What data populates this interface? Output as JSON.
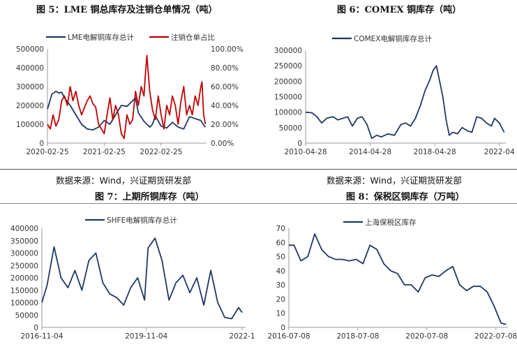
{
  "charts": {
    "c5": {
      "title": "图 5：LME 铜总库存及注销仓单情况（吨）",
      "source": "数据来源：Wind，兴证期货研发部",
      "chart_data": {
        "type": "line",
        "xlabel": "",
        "ylabel": "",
        "x_ticks": [
          "2020-02-25",
          "2021-02-25",
          "2022-02-25"
        ],
        "y_left_ticks": [
          "0",
          "100000",
          "200000",
          "300000",
          "400000",
          "500000"
        ],
        "y_right_ticks": [
          "0.00%",
          "20.00%",
          "40.00%",
          "60.00%",
          "80.00%",
          "100.00%"
        ],
        "ylim_left": [
          0,
          500000
        ],
        "ylim_right": [
          0,
          100
        ],
        "legend": "top",
        "series": [
          {
            "name": "LME电解铜库存总计",
            "axis": "left",
            "color": "#1f3864",
            "x": [
              2020.0,
              2020.08,
              2020.15,
              2020.2,
              2020.25,
              2020.3,
              2020.4,
              2020.5,
              2020.6,
              2020.7,
              2020.8,
              2020.9,
              2021.0,
              2021.1,
              2021.2,
              2021.3,
              2021.4,
              2021.5,
              2021.55,
              2021.6,
              2021.7,
              2021.8,
              2021.85,
              2021.9,
              2022.0,
              2022.1,
              2022.2,
              2022.3,
              2022.4,
              2022.5,
              2022.6,
              2022.7,
              2022.75,
              2022.78
            ],
            "values": [
              180000,
              260000,
              275000,
              265000,
              270000,
              240000,
              200000,
              150000,
              100000,
              75000,
              70000,
              85000,
              120000,
              100000,
              150000,
              200000,
              195000,
              225000,
              240000,
              160000,
              115000,
              85000,
              100000,
              145000,
              90000,
              80000,
              110000,
              85000,
              75000,
              140000,
              130000,
              120000,
              95000,
              85000
            ]
          },
          {
            "name": "注销仓单占比",
            "axis": "right",
            "color": "#c00000",
            "x": [
              2020.0,
              2020.05,
              2020.1,
              2020.15,
              2020.2,
              2020.25,
              2020.3,
              2020.35,
              2020.4,
              2020.45,
              2020.5,
              2020.55,
              2020.6,
              2020.7,
              2020.75,
              2020.8,
              2020.85,
              2020.9,
              2021.0,
              2021.05,
              2021.1,
              2021.15,
              2021.2,
              2021.25,
              2021.3,
              2021.35,
              2021.4,
              2021.45,
              2021.5,
              2021.55,
              2021.6,
              2021.65,
              2021.7,
              2021.72,
              2021.75,
              2021.8,
              2021.85,
              2021.9,
              2021.95,
              2022.0,
              2022.05,
              2022.1,
              2022.15,
              2022.2,
              2022.25,
              2022.3,
              2022.35,
              2022.4,
              2022.45,
              2022.5,
              2022.55,
              2022.6,
              2022.65,
              2022.7,
              2022.72,
              2022.75,
              2022.78
            ],
            "values": [
              20,
              15,
              30,
              18,
              25,
              45,
              50,
              40,
              60,
              45,
              55,
              40,
              30,
              45,
              50,
              42,
              38,
              20,
              10,
              30,
              48,
              25,
              40,
              30,
              10,
              5,
              30,
              20,
              25,
              55,
              40,
              60,
              50,
              70,
              93,
              55,
              35,
              25,
              50,
              30,
              15,
              40,
              30,
              50,
              40,
              20,
              45,
              60,
              30,
              40,
              30,
              50,
              40,
              60,
              65,
              30,
              20
            ]
          }
        ]
      }
    },
    "c6": {
      "title": "图 6：COMEX 铜库存（吨）",
      "chart_data": {
        "type": "line",
        "xlabel": "",
        "ylabel": "",
        "x_ticks": [
          "2010-04-28",
          "2014-04-28",
          "2018-04-28",
          "2022-04"
        ],
        "y_ticks": [
          "0",
          "50000",
          "100000",
          "150000",
          "200000",
          "250000",
          "300000"
        ],
        "ylim": [
          0,
          300000
        ],
        "legend": "top",
        "series": [
          {
            "name": "COMEX电解铜库存总计",
            "color": "#1f3864",
            "x": [
              2010.3,
              2010.7,
              2011.0,
              2011.3,
              2011.6,
              2012.0,
              2012.3,
              2012.6,
              2012.9,
              2013.2,
              2013.5,
              2013.8,
              2014.1,
              2014.4,
              2014.7,
              2015.0,
              2015.4,
              2015.8,
              2016.2,
              2016.5,
              2016.8,
              2017.1,
              2017.4,
              2017.7,
              2018.0,
              2018.2,
              2018.4,
              2018.6,
              2018.8,
              2019.0,
              2019.2,
              2019.4,
              2019.7,
              2020.0,
              2020.3,
              2020.6,
              2020.9,
              2021.2,
              2021.5,
              2021.8,
              2022.0,
              2022.3,
              2022.6
            ],
            "values": [
              100000,
              98000,
              85000,
              65000,
              80000,
              85000,
              75000,
              80000,
              85000,
              55000,
              80000,
              85000,
              60000,
              15000,
              25000,
              20000,
              30000,
              25000,
              60000,
              65000,
              55000,
              80000,
              120000,
              170000,
              205000,
              235000,
              250000,
              200000,
              150000,
              75000,
              25000,
              35000,
              30000,
              50000,
              40000,
              35000,
              85000,
              80000,
              65000,
              55000,
              80000,
              65000,
              35000
            ]
          }
        ]
      }
    },
    "c7": {
      "title": "图 7：上期所铜库存（吨）",
      "source": "数据来源：Wind，兴证期货研发部",
      "chart_data": {
        "type": "line",
        "xlabel": "",
        "ylabel": "",
        "x_ticks": [
          "2016-11-04",
          "2019-11-04",
          "2022-1"
        ],
        "y_ticks": [
          "0",
          "50000",
          "100000",
          "150000",
          "200000",
          "250000",
          "300000",
          "350000",
          "400000"
        ],
        "ylim": [
          0,
          400000
        ],
        "legend": "top",
        "series": [
          {
            "name": "SHFE电解铜库存总计",
            "color": "#1f3864",
            "x": [
              2016.85,
              2017.0,
              2017.2,
              2017.4,
              2017.6,
              2017.8,
              2018.0,
              2018.2,
              2018.4,
              2018.6,
              2018.8,
              2019.0,
              2019.2,
              2019.4,
              2019.6,
              2019.8,
              2019.9,
              2020.1,
              2020.3,
              2020.5,
              2020.7,
              2020.9,
              2021.1,
              2021.3,
              2021.5,
              2021.7,
              2021.9,
              2022.1,
              2022.3,
              2022.5,
              2022.6
            ],
            "values": [
              100000,
              170000,
              325000,
              200000,
              160000,
              230000,
              150000,
              270000,
              300000,
              180000,
              135000,
              120000,
              90000,
              160000,
              200000,
              110000,
              320000,
              360000,
              270000,
              110000,
              180000,
              210000,
              140000,
              200000,
              90000,
              230000,
              100000,
              40000,
              35000,
              80000,
              60000
            ]
          }
        ]
      }
    },
    "c8": {
      "title": "图 8：保税区铜库存（万吨）",
      "chart_data": {
        "type": "line",
        "xlabel": "",
        "ylabel": "",
        "x_ticks": [
          "2016-07-08",
          "2018-07-08",
          "2020-07-08",
          "2022-07-08"
        ],
        "y_ticks": [
          "0",
          "10",
          "20",
          "30",
          "40",
          "50",
          "60",
          "70"
        ],
        "ylim": [
          0,
          70
        ],
        "legend": "top",
        "series": [
          {
            "name": "上海保税区库存",
            "color": "#1f3864",
            "x": [
              2016.55,
              2016.7,
              2016.9,
              2017.1,
              2017.3,
              2017.5,
              2017.7,
              2017.9,
              2018.1,
              2018.3,
              2018.5,
              2018.7,
              2018.9,
              2019.1,
              2019.3,
              2019.5,
              2019.7,
              2019.9,
              2020.1,
              2020.3,
              2020.5,
              2020.7,
              2020.9,
              2021.1,
              2021.3,
              2021.5,
              2021.7,
              2021.9,
              2022.1,
              2022.3,
              2022.5,
              2022.7,
              2022.85
            ],
            "values": [
              58,
              58,
              47,
              50,
              66,
              55,
              50,
              48,
              48,
              47,
              48,
              45,
              58,
              55,
              45,
              40,
              38,
              30,
              30,
              25,
              35,
              37,
              36,
              40,
              43,
              30,
              26,
              29,
              29,
              25,
              15,
              3,
              2
            ]
          }
        ]
      }
    }
  }
}
